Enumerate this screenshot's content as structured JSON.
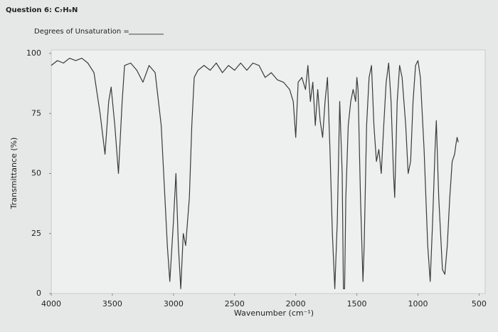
{
  "header": {
    "question": "Question 6: C₇H₉N",
    "prompt": "Degrees of Unsaturation ="
  },
  "chart_data": {
    "type": "line",
    "x_label": "Wavenumber (cm⁻¹)",
    "y_label": "Transmittance (%)",
    "color": "#3a3a3a",
    "xlim": [
      4000,
      450
    ],
    "ylim": [
      0,
      100
    ],
    "xticks": [
      4000,
      3500,
      3000,
      2500,
      2000,
      1500,
      1000,
      500
    ],
    "yticks": [
      0,
      25,
      50,
      75,
      100
    ],
    "x": [
      4000,
      3950,
      3900,
      3850,
      3800,
      3750,
      3700,
      3650,
      3600,
      3560,
      3530,
      3510,
      3480,
      3450,
      3420,
      3400,
      3350,
      3300,
      3250,
      3200,
      3150,
      3100,
      3070,
      3050,
      3030,
      3000,
      2980,
      2960,
      2940,
      2920,
      2900,
      2870,
      2850,
      2830,
      2800,
      2750,
      2700,
      2650,
      2600,
      2550,
      2500,
      2450,
      2400,
      2350,
      2300,
      2250,
      2200,
      2150,
      2100,
      2050,
      2020,
      2000,
      1980,
      1950,
      1920,
      1900,
      1880,
      1860,
      1840,
      1820,
      1800,
      1780,
      1760,
      1740,
      1720,
      1700,
      1680,
      1660,
      1640,
      1620,
      1610,
      1600,
      1590,
      1570,
      1550,
      1530,
      1510,
      1500,
      1490,
      1470,
      1450,
      1440,
      1420,
      1400,
      1380,
      1360,
      1340,
      1320,
      1300,
      1280,
      1260,
      1240,
      1220,
      1200,
      1190,
      1170,
      1150,
      1130,
      1100,
      1080,
      1060,
      1040,
      1020,
      1000,
      980,
      950,
      920,
      900,
      880,
      860,
      850,
      830,
      800,
      780,
      760,
      740,
      720,
      700,
      690,
      680,
      670
    ],
    "values": [
      95,
      97,
      96,
      98,
      97,
      98,
      96,
      92,
      75,
      58,
      80,
      86,
      70,
      50,
      80,
      95,
      96,
      93,
      88,
      95,
      92,
      70,
      40,
      20,
      5,
      30,
      50,
      20,
      2,
      25,
      20,
      40,
      70,
      90,
      93,
      95,
      93,
      96,
      92,
      95,
      93,
      96,
      93,
      96,
      95,
      90,
      92,
      89,
      88,
      85,
      80,
      65,
      88,
      90,
      85,
      95,
      80,
      88,
      70,
      85,
      72,
      65,
      80,
      90,
      60,
      25,
      2,
      30,
      80,
      50,
      2,
      2,
      40,
      70,
      80,
      85,
      80,
      90,
      85,
      40,
      5,
      20,
      70,
      90,
      95,
      70,
      55,
      60,
      50,
      70,
      88,
      96,
      80,
      50,
      40,
      80,
      95,
      90,
      70,
      50,
      55,
      80,
      95,
      97,
      90,
      60,
      20,
      5,
      30,
      60,
      72,
      40,
      10,
      8,
      20,
      40,
      55,
      58,
      62,
      65,
      63
    ]
  }
}
